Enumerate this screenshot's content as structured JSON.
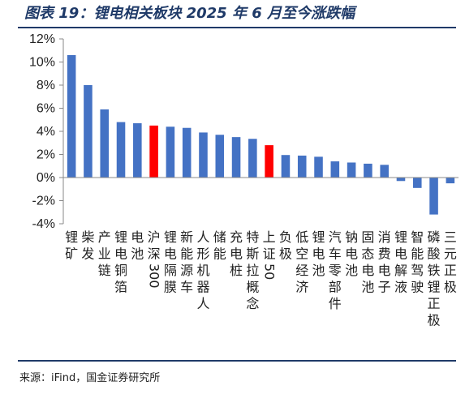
{
  "title": "图表 19：锂电相关板块 2025 年 6 月至今涨跌幅",
  "source": "来源：iFind，国金证券研究所",
  "colors": {
    "default": "#4472c4",
    "highlight": "#ff0000",
    "rule": "#1f3a68"
  },
  "chart_data": {
    "type": "bar",
    "title": "",
    "xlabel": "",
    "ylabel": "",
    "ylim": [
      -4,
      12
    ],
    "yticks": [
      -4,
      -2,
      0,
      2,
      4,
      6,
      8,
      10,
      12
    ],
    "ytick_labels": [
      "-4%",
      "-2%",
      "0%",
      "2%",
      "4%",
      "6%",
      "8%",
      "10%",
      "12%"
    ],
    "grid": false,
    "legend": "none",
    "categories": [
      "锂矿",
      "柴发",
      "产业链",
      "锂电铜箔",
      "电池",
      "沪深300",
      "锂电隔膜",
      "新能源车",
      "人形机器人",
      "储能",
      "充电桩",
      "特斯拉概念",
      "上证50",
      "负极",
      "低空经济",
      "锂电池",
      "汽车零部件",
      "钠电池",
      "固态电池",
      "消费电子",
      "锂电解液",
      "智能驾驶",
      "磷酸铁锂正极",
      "三元正极"
    ],
    "values": [
      10.6,
      8.0,
      5.9,
      4.8,
      4.7,
      4.5,
      4.4,
      4.3,
      3.9,
      3.7,
      3.5,
      3.35,
      2.8,
      1.95,
      1.9,
      1.8,
      1.4,
      1.3,
      1.2,
      1.1,
      -0.3,
      -0.9,
      -3.2,
      -0.5
    ],
    "highlight": [
      "沪深300",
      "上证50"
    ]
  }
}
